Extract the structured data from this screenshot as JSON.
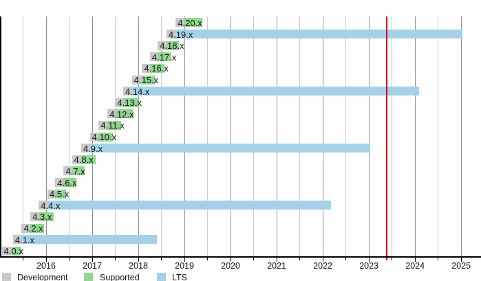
{
  "chart_data": {
    "type": "gantt",
    "description": "Stacked timeline (Gantt) of Linux kernel 4.x release series showing development, supported and LTS phases",
    "x_axis": {
      "min": 2015.0,
      "max": 2025.43,
      "year_labels": [
        "2016",
        "2017",
        "2018",
        "2019",
        "2020",
        "2021",
        "2022",
        "2023",
        "2024",
        "2025"
      ],
      "minor_tick_interval": 0.5,
      "gridlines": "vertical",
      "axis_color": "#000000",
      "major_grid_color": "#8f8f8f",
      "minor_grid_color": "#cbcbcb"
    },
    "today_marker": {
      "position": 2023.38,
      "color": "#cc0000"
    },
    "legend": [
      {
        "key": "development",
        "label": "Development",
        "color": "#c9c9c9"
      },
      {
        "key": "supported",
        "label": "Supported",
        "color": "#90d890"
      },
      {
        "key": "lts",
        "label": "LTS",
        "color": "#a4d1ea"
      }
    ],
    "rows": [
      {
        "label": "4.20.x",
        "development": [
          2018.81,
          2018.98
        ],
        "supported": [
          2018.98,
          2019.39
        ],
        "lts": null
      },
      {
        "label": "4.19.x",
        "development": [
          2018.61,
          2018.81
        ],
        "supported": null,
        "lts": [
          2018.81,
          2025.03
        ]
      },
      {
        "label": "4.18.x",
        "development": [
          2018.42,
          2018.61
        ],
        "supported": [
          2018.61,
          2018.88
        ],
        "lts": null
      },
      {
        "label": "4.17.x",
        "development": [
          2018.25,
          2018.42
        ],
        "supported": [
          2018.42,
          2018.72
        ],
        "lts": null
      },
      {
        "label": "4.16.x",
        "development": [
          2018.08,
          2018.25
        ],
        "supported": [
          2018.25,
          2018.57
        ],
        "lts": null
      },
      {
        "label": "4.15.x",
        "development": [
          2017.86,
          2018.08
        ],
        "supported": [
          2018.08,
          2018.35
        ],
        "lts": null
      },
      {
        "label": "4.14.x",
        "development": [
          2017.67,
          2017.86
        ],
        "supported": null,
        "lts": [
          2017.86,
          2024.09
        ]
      },
      {
        "label": "4.13.x",
        "development": [
          2017.5,
          2017.67
        ],
        "supported": [
          2017.67,
          2018.02
        ],
        "lts": null
      },
      {
        "label": "4.12.x",
        "development": [
          2017.33,
          2017.5
        ],
        "supported": [
          2017.5,
          2017.9
        ],
        "lts": null
      },
      {
        "label": "4.11.x",
        "development": [
          2017.14,
          2017.33
        ],
        "supported": [
          2017.33,
          2017.62
        ],
        "lts": null
      },
      {
        "label": "4.10.x",
        "development": [
          2016.95,
          2017.14
        ],
        "supported": [
          2017.14,
          2017.44
        ],
        "lts": null
      },
      {
        "label": "4.9.x",
        "development": [
          2016.76,
          2016.95
        ],
        "supported": null,
        "lts": [
          2016.95,
          2023.03
        ]
      },
      {
        "label": "4.8.x",
        "development": [
          2016.56,
          2016.76
        ],
        "supported": [
          2016.76,
          2017.08
        ],
        "lts": null
      },
      {
        "label": "4.7.x",
        "development": [
          2016.38,
          2016.56
        ],
        "supported": [
          2016.56,
          2016.84
        ],
        "lts": null
      },
      {
        "label": "4.6.x",
        "development": [
          2016.2,
          2016.38
        ],
        "supported": [
          2016.38,
          2016.66
        ],
        "lts": null
      },
      {
        "label": "4.5.x",
        "development": [
          2016.03,
          2016.2
        ],
        "supported": [
          2016.2,
          2016.44
        ],
        "lts": null
      },
      {
        "label": "4.4.x",
        "development": [
          2015.84,
          2016.03
        ],
        "supported": null,
        "lts": [
          2016.03,
          2022.17
        ]
      },
      {
        "label": "4.3.x",
        "development": [
          2015.66,
          2015.84
        ],
        "supported": [
          2015.84,
          2016.17
        ],
        "lts": null
      },
      {
        "label": "4.2.x",
        "development": [
          2015.47,
          2015.66
        ],
        "supported": [
          2015.66,
          2015.96
        ],
        "lts": null
      },
      {
        "label": "4.1.x",
        "development": [
          2015.28,
          2015.47
        ],
        "supported": null,
        "lts": [
          2015.47,
          2018.4
        ]
      },
      {
        "label": "4.0.x",
        "development": [
          2015.04,
          2015.28
        ],
        "supported": [
          2015.28,
          2015.47
        ],
        "lts": null
      }
    ]
  }
}
